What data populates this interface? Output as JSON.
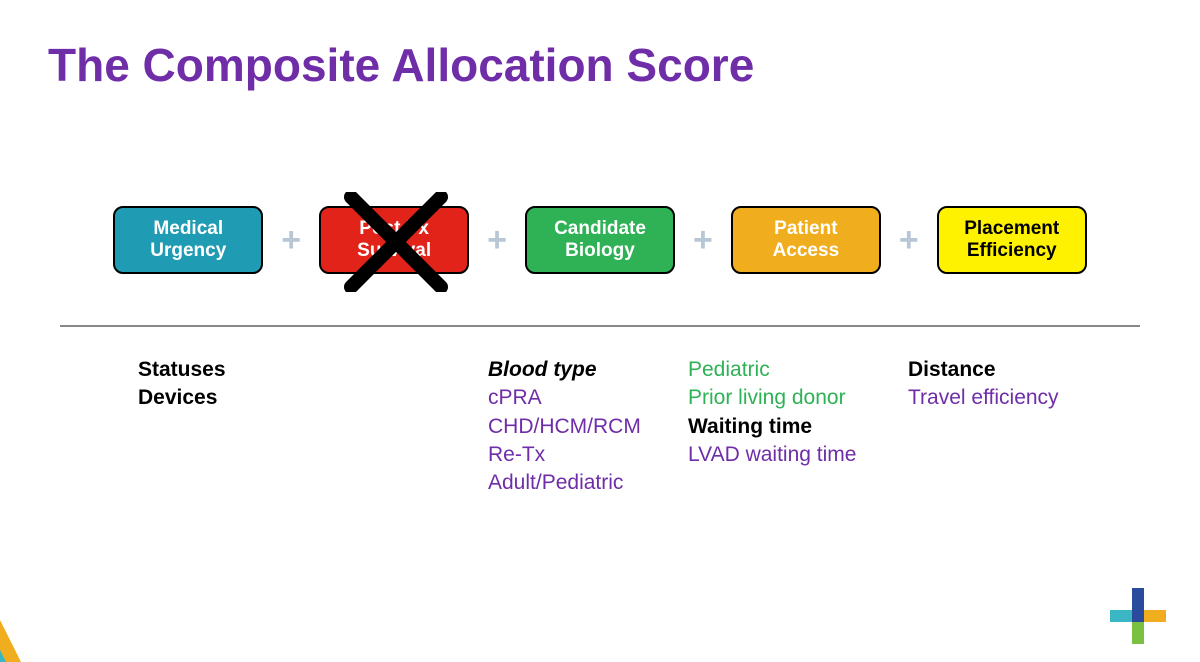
{
  "title": {
    "text": "The Composite Allocation Score",
    "color": "#6f2da8",
    "fontsize": 46
  },
  "equation": {
    "plus_color": "#b9c6d6",
    "boxes": [
      {
        "line1": "Medical",
        "line2": "Urgency",
        "bg": "#1f9bb3",
        "text_color": "#ffffff",
        "crossed": false
      },
      {
        "line1": "Post-Tx",
        "line2": "Survival",
        "bg": "#e2231a",
        "text_color": "#ffffff",
        "crossed": true
      },
      {
        "line1": "Candidate",
        "line2": "Biology",
        "bg": "#2eb255",
        "text_color": "#ffffff",
        "crossed": false
      },
      {
        "line1": "Patient",
        "line2": "Access",
        "bg": "#f0ad1e",
        "text_color": "#ffffff",
        "crossed": false
      },
      {
        "line1": "Placement",
        "line2": "Efficiency",
        "bg": "#fff200",
        "text_color": "#000000",
        "crossed": false
      }
    ],
    "x_color": "#000000"
  },
  "columns": {
    "purple": "#6f2da8",
    "green": "#2eb255",
    "col1": [
      {
        "text": "Statuses",
        "style": "bold"
      },
      {
        "text": "Devices",
        "style": "bold"
      }
    ],
    "col3": [
      {
        "text": "Blood type",
        "style": "bold-italic"
      },
      {
        "text": "cPRA",
        "style": "purple"
      },
      {
        "text": "CHD/HCM/RCM",
        "style": "purple"
      },
      {
        "text": "Re-Tx",
        "style": "purple"
      },
      {
        "text": "Adult/Pediatric",
        "style": "purple"
      }
    ],
    "col4": [
      {
        "text": "Pediatric",
        "style": "green"
      },
      {
        "text": "Prior living donor",
        "style": "green"
      },
      {
        "text": "Waiting time",
        "style": "bold"
      },
      {
        "text": "LVAD waiting time",
        "style": "purple"
      }
    ],
    "col5": [
      {
        "text": "Distance",
        "style": "bold"
      },
      {
        "text": "Travel efficiency",
        "style": "purple"
      }
    ]
  },
  "logo": {
    "colors": {
      "blue": "#2a4b9b",
      "teal": "#3ab6c4",
      "orange": "#f0ad1e",
      "green": "#7ac142"
    }
  }
}
